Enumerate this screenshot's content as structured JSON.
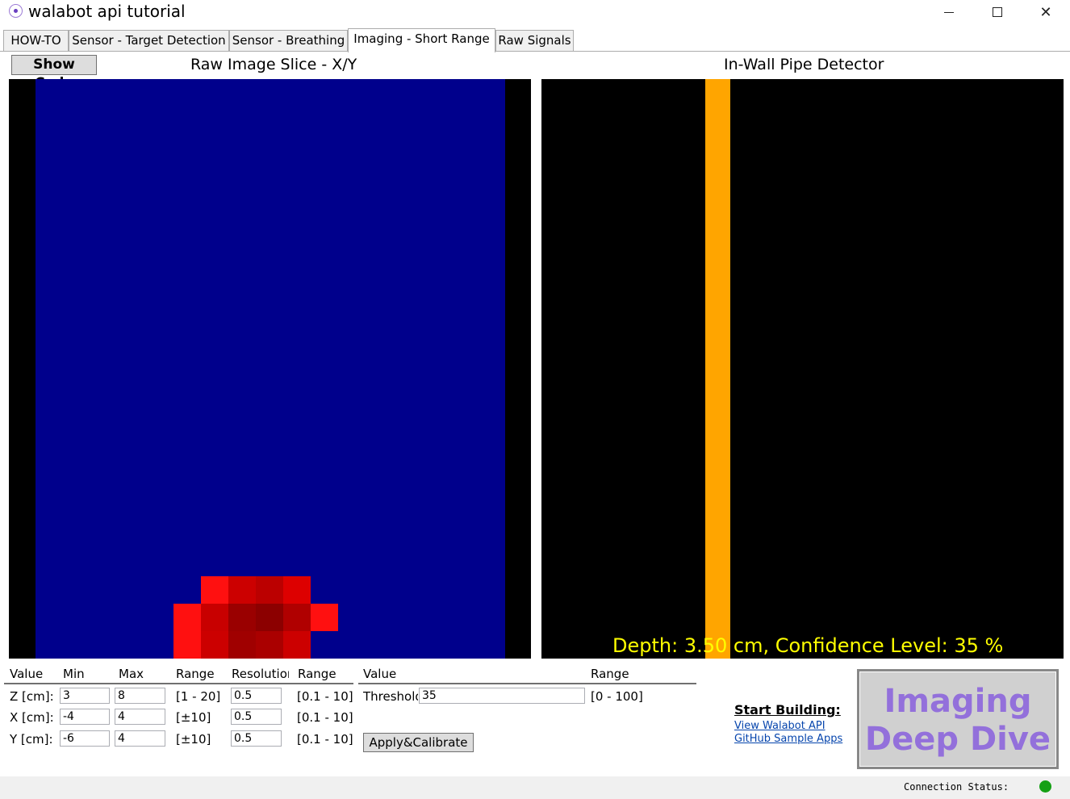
{
  "window": {
    "title": "walabot api tutorial",
    "icon": "walabot-app-icon",
    "controls": [
      "minimize-icon",
      "maximize-icon",
      "close-icon"
    ]
  },
  "tabs": [
    {
      "label": "HOW-TO",
      "active": false
    },
    {
      "label": "Sensor - Target Detection",
      "active": false
    },
    {
      "label": "Sensor - Breathing",
      "active": false
    },
    {
      "label": "Imaging - Short Range",
      "active": true
    },
    {
      "label": "Raw Signals",
      "active": false
    }
  ],
  "header": {
    "show_code": "Show Code",
    "left_title": "Raw Image Slice - X/Y",
    "right_title": "In-Wall Pipe Detector"
  },
  "raw_image": {
    "background_color": "#00008c",
    "border_color": "#000000",
    "hot_cells": [
      {
        "col": 7,
        "row": 0,
        "color": "#ff1010"
      },
      {
        "col": 8,
        "row": 0,
        "color": "#cc0000"
      },
      {
        "col": 9,
        "row": 0,
        "color": "#bb0000"
      },
      {
        "col": 10,
        "row": 0,
        "color": "#dd0000"
      },
      {
        "col": 6,
        "row": 1,
        "color": "#ff1010"
      },
      {
        "col": 7,
        "row": 1,
        "color": "#c80000"
      },
      {
        "col": 8,
        "row": 1,
        "color": "#9a0000"
      },
      {
        "col": 9,
        "row": 1,
        "color": "#8c0000"
      },
      {
        "col": 10,
        "row": 1,
        "color": "#b00000"
      },
      {
        "col": 11,
        "row": 1,
        "color": "#ff1010"
      },
      {
        "col": 6,
        "row": 2,
        "color": "#ff1010"
      },
      {
        "col": 7,
        "row": 2,
        "color": "#cc0000"
      },
      {
        "col": 8,
        "row": 2,
        "color": "#a00000"
      },
      {
        "col": 9,
        "row": 2,
        "color": "#aa0000"
      },
      {
        "col": 10,
        "row": 2,
        "color": "#cc0000"
      }
    ]
  },
  "pipe_detector": {
    "readout": "Depth: 3.50 cm, Confidence Level: 35 %",
    "pipe_color": "#ffa500",
    "text_color": "#ffff00"
  },
  "arena": {
    "headers": [
      "Value",
      "Min",
      "Max",
      "Range",
      "Resolution",
      "Range"
    ],
    "rows": [
      {
        "label": "Z [cm]:",
        "min": "3",
        "max": "8",
        "range": "[1 - 20]",
        "resolution": "0.5",
        "res_range": "[0.1 - 10]"
      },
      {
        "label": "X [cm]:",
        "min": "-4",
        "max": "4",
        "range": "[±10]",
        "resolution": "0.5",
        "res_range": "[0.1 - 10]"
      },
      {
        "label": "Y [cm]:",
        "min": "-6",
        "max": "4",
        "range": "[±10]",
        "resolution": "0.5",
        "res_range": "[0.1 - 10]"
      }
    ]
  },
  "threshold": {
    "headers": [
      "Value",
      "Range"
    ],
    "label": "Threshold",
    "value": "35",
    "range": "[0 - 100]",
    "apply_label": "Apply&Calibrate"
  },
  "links": {
    "heading": "Start Building:",
    "api": "View Walabot API",
    "github": "GitHub Sample Apps"
  },
  "deep_dive": {
    "line1": "Imaging",
    "line2": "Deep Dive"
  },
  "status": {
    "label": "Connection Status:",
    "color": "#14a014"
  }
}
